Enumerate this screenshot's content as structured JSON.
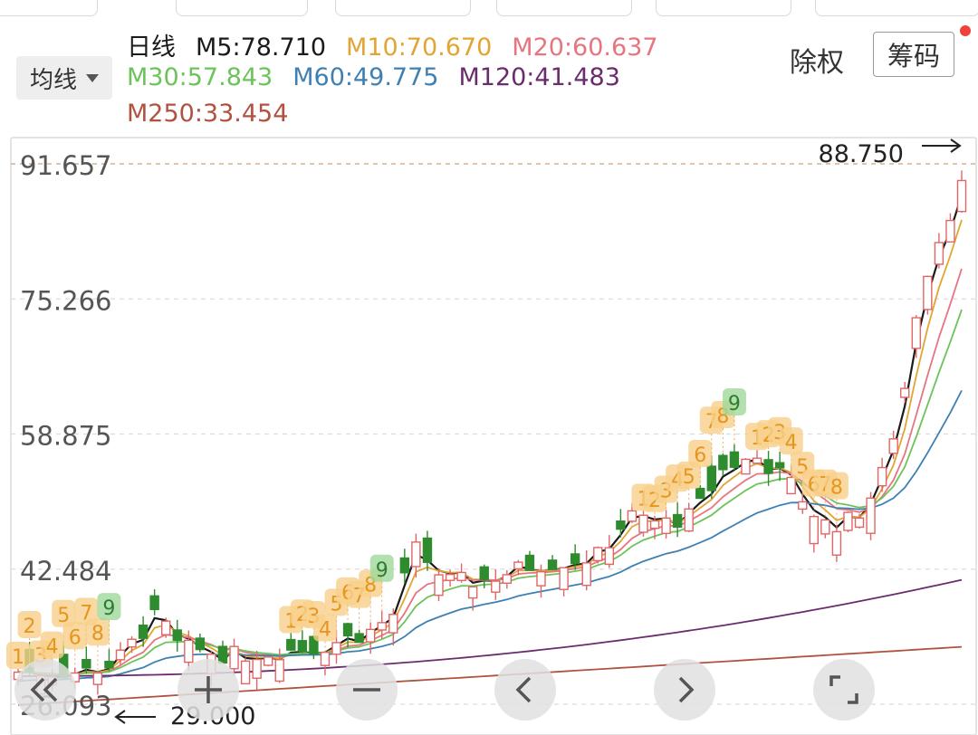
{
  "header": {
    "ma_button_label": "均线",
    "ex_rights_label": "除权",
    "chips_label": "筹码",
    "period_label": "日线"
  },
  "ma_legend": [
    {
      "label": "M5:78.710",
      "color": "#1a1a1a"
    },
    {
      "label": "M10:70.670",
      "color": "#e2a533"
    },
    {
      "label": "M20:60.637",
      "color": "#e67580"
    },
    {
      "label": "M30:57.843",
      "color": "#6cc35a"
    },
    {
      "label": "M60:49.775",
      "color": "#3f80b3"
    },
    {
      "label": "M120:41.483",
      "color": "#6b2c6e"
    },
    {
      "label": "M250:33.454",
      "color": "#b0523f"
    }
  ],
  "chart_data": {
    "type": "candlestick",
    "y_ticks": [
      "91.657",
      "75.266",
      "58.875",
      "42.484",
      "26.093"
    ],
    "ylim": [
      26.093,
      91.657
    ],
    "max_marker": "88.750",
    "min_marker": "29.000",
    "colors": {
      "up": "#e06666",
      "down": "#2e8b2e",
      "grid": "#dcdcdc",
      "reference": "#c9a37a"
    },
    "nine_turn_labels": [
      {
        "group": 1,
        "day": 9,
        "values": [
          "1",
          "2",
          "3",
          "4",
          "5",
          "6",
          "7",
          "8",
          "9"
        ]
      },
      {
        "group": 2,
        "day": 34,
        "values": [
          "1",
          "2",
          "3",
          "4",
          "5",
          "6",
          "7",
          "8",
          "9"
        ]
      },
      {
        "group": 3,
        "day": 67,
        "values": [
          "1",
          "2",
          "3",
          "4",
          "5",
          "6",
          "7",
          "8",
          "9"
        ]
      },
      {
        "group": 4,
        "day": 76,
        "values": [
          "1",
          "2",
          "3",
          "4",
          "5",
          "6",
          "7",
          "8"
        ]
      }
    ]
  },
  "controls": [
    {
      "name": "scroll-left-button",
      "icon": "double-chevron-left-icon"
    },
    {
      "name": "zoom-in-button",
      "icon": "plus-icon"
    },
    {
      "name": "zoom-out-button",
      "icon": "minus-icon"
    },
    {
      "name": "prev-button",
      "icon": "chevron-left-icon"
    },
    {
      "name": "next-button",
      "icon": "chevron-right-icon"
    },
    {
      "name": "fullscreen-button",
      "icon": "fullscreen-icon"
    }
  ]
}
